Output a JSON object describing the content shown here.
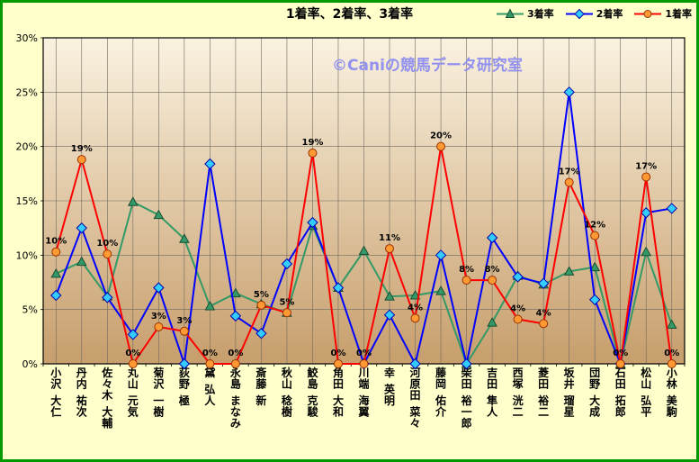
{
  "chart": {
    "title": "1着率、2着率、3着率",
    "watermark": "©Caniの競馬データ研究室",
    "watermark_color": "#8C8CF0",
    "background_color": "#FFFFCC",
    "border_color": "#009900",
    "plot_gradient_top": "#FAF2E0",
    "plot_gradient_bottom": "#C79E6C",
    "gridline_color": "#6E6A5E"
  },
  "chart_data": {
    "type": "line",
    "title": "1着率、2着率、3着率",
    "categories": [
      "小沢 大仁",
      "丹内 祐次",
      "佐々木 大輔",
      "丸山 元気",
      "菊沢 一樹",
      "荻野 極",
      "黛 弘人",
      "永島 まなみ",
      "斎藤 新",
      "秋山 稔樹",
      "鮫島 克駿",
      "角田 大和",
      "川端 海翼",
      "幸 英明",
      "河原田 菜々",
      "藤岡 佑介",
      "柴田 裕一郎",
      "吉田 隼人",
      "西塚 洸二",
      "菱田 裕二",
      "坂井 瑠星",
      "団野 大成",
      "石田 拓郎",
      "松山 弘平",
      "小林 美駒"
    ],
    "yticks": [
      "0%",
      "5%",
      "10%",
      "15%",
      "20%",
      "25%",
      "30%"
    ],
    "ylim": [
      0,
      30
    ],
    "grid": true,
    "legend_position": "top-right",
    "series": [
      {
        "name": "3着率",
        "marker": "triangle",
        "line_color": "#339966",
        "marker_fill": "#339966",
        "marker_stroke": "#1A4D33",
        "values": [
          8.3,
          9.4,
          6.2,
          14.9,
          13.7,
          11.5,
          5.3,
          6.5,
          5.5,
          4.7,
          12.7,
          7.0,
          10.4,
          6.2,
          6.3,
          6.7,
          0,
          3.8,
          8.1,
          7.3,
          8.5,
          8.9,
          0,
          10.3,
          3.6
        ]
      },
      {
        "name": "2着率",
        "marker": "diamond",
        "line_color": "#0000FF",
        "marker_fill": "#33CCFF",
        "marker_stroke": "#0000AA",
        "values": [
          6.3,
          12.5,
          6.1,
          2.7,
          7.0,
          0,
          18.4,
          4.4,
          2.8,
          9.2,
          13.0,
          7.0,
          0,
          4.5,
          0,
          10.0,
          0,
          11.6,
          8.0,
          7.4,
          25.0,
          5.9,
          0,
          13.9,
          14.3
        ]
      },
      {
        "name": "1着率",
        "marker": "circle",
        "line_color": "#FF0000",
        "marker_fill": "#FF9933",
        "marker_stroke": "#993300",
        "values": [
          10.3,
          18.8,
          10.1,
          0,
          3.4,
          3.0,
          0,
          0,
          5.4,
          4.7,
          19.4,
          0,
          0,
          10.6,
          4.2,
          20.0,
          7.7,
          7.7,
          4.1,
          3.7,
          16.7,
          11.8,
          0,
          17.2,
          0
        ],
        "point_labels": [
          "10%",
          "19%",
          "10%",
          "0%",
          "3%",
          "3%",
          "0%",
          "0%",
          "5%",
          "5%",
          "19%",
          "0%",
          "0%",
          "11%",
          "4%",
          "20%",
          "8%",
          "8%",
          "4%",
          "4%",
          "17%",
          "12%",
          "0%",
          "17%",
          "0%"
        ]
      }
    ]
  }
}
